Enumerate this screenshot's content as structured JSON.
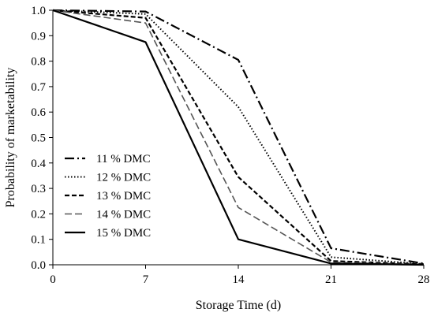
{
  "chart_data": {
    "type": "line",
    "title": "",
    "xlabel": "Storage Time (d)",
    "ylabel": "Probability of marketability",
    "x": [
      0,
      7,
      14,
      21,
      28
    ],
    "xlim": [
      0,
      28
    ],
    "ylim": [
      0,
      1
    ],
    "x_ticks": [
      "0",
      "7",
      "14",
      "21",
      "28"
    ],
    "y_ticks": [
      "0.0",
      "0.1",
      "0.2",
      "0.3",
      "0.4",
      "0.5",
      "0.6",
      "0.7",
      "0.8",
      "0.9",
      "1.0"
    ],
    "grid": false,
    "legend_position": "left",
    "series": [
      {
        "name": "11 % DMC",
        "values": [
          1.0,
          0.995,
          0.805,
          0.065,
          0.005
        ],
        "style": "dash-dot",
        "color": "#000000"
      },
      {
        "name": "12 % DMC",
        "values": [
          1.0,
          0.985,
          0.62,
          0.03,
          0.003
        ],
        "style": "dotted",
        "color": "#000000"
      },
      {
        "name": "13 % DMC",
        "values": [
          1.0,
          0.97,
          0.345,
          0.015,
          0.002
        ],
        "style": "dashed",
        "color": "#000000"
      },
      {
        "name": "14 % DMC",
        "values": [
          1.0,
          0.95,
          0.225,
          0.01,
          0.001
        ],
        "style": "long-dash-gray",
        "color": "#555555"
      },
      {
        "name": "15 % DMC",
        "values": [
          1.0,
          0.875,
          0.1,
          0.005,
          0.0
        ],
        "style": "solid",
        "color": "#000000"
      }
    ]
  }
}
